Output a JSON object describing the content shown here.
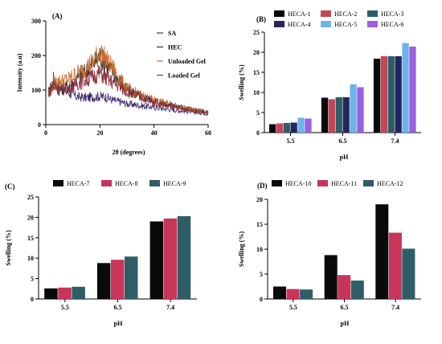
{
  "figure": {
    "background": "#ffffff"
  },
  "chart_data": [
    {
      "id": "A",
      "type": "line",
      "panel_label": "(A)",
      "xlabel": "2θ (degrees)",
      "ylabel": "Intensity (a.u)",
      "xlim": [
        0,
        60
      ],
      "ylim": [
        0,
        300
      ],
      "xticks": [
        0,
        20,
        40,
        60
      ],
      "yticks": [
        0,
        100,
        200,
        300
      ],
      "legend_position": "top-right",
      "series": [
        {
          "name": "SA",
          "color": "#3a2a6e",
          "x": [
            1,
            3,
            5,
            8,
            10,
            12,
            15,
            18,
            20,
            22,
            25,
            28,
            30,
            35,
            40,
            45,
            50,
            55,
            60
          ],
          "y": [
            90,
            135,
            110,
            95,
            85,
            80,
            78,
            80,
            82,
            80,
            70,
            65,
            60,
            55,
            50,
            45,
            40,
            36,
            32
          ]
        },
        {
          "name": "HEC",
          "color": "#2f2f2f",
          "x": [
            1,
            3,
            5,
            8,
            10,
            12,
            15,
            18,
            20,
            22,
            25,
            28,
            30,
            35,
            40,
            45,
            50,
            55,
            60
          ],
          "y": [
            95,
            115,
            100,
            110,
            120,
            135,
            155,
            180,
            200,
            175,
            150,
            120,
            100,
            80,
            70,
            60,
            50,
            42,
            35
          ]
        },
        {
          "name": "Unloaded Gel",
          "color": "#c96a2b",
          "x": [
            1,
            3,
            5,
            8,
            10,
            12,
            15,
            18,
            20,
            22,
            25,
            28,
            30,
            35,
            40,
            45,
            50,
            55,
            60
          ],
          "y": [
            85,
            120,
            125,
            130,
            140,
            150,
            165,
            185,
            210,
            190,
            160,
            125,
            105,
            85,
            70,
            60,
            50,
            42,
            35
          ]
        },
        {
          "name": "Loaded Gel",
          "color": "#8a2f3c",
          "x": [
            1,
            3,
            5,
            8,
            10,
            12,
            15,
            18,
            20,
            22,
            25,
            28,
            30,
            35,
            40,
            45,
            50,
            55,
            60
          ],
          "y": [
            90,
            120,
            100,
            105,
            110,
            120,
            130,
            140,
            150,
            135,
            120,
            105,
            95,
            80,
            65,
            55,
            47,
            40,
            34
          ]
        }
      ]
    },
    {
      "id": "B",
      "type": "bar",
      "panel_label": "(B)",
      "xlabel": "pH",
      "ylabel": "Swelling (%)",
      "categories": [
        "5.5",
        "6.5",
        "7.4"
      ],
      "ylim": [
        0,
        25
      ],
      "yticks": [
        0,
        5,
        10,
        15,
        20,
        25
      ],
      "legend_position": "top",
      "series": [
        {
          "name": "HECA-1",
          "color": "#0a0a0a",
          "values": [
            2.1,
            8.7,
            18.4
          ]
        },
        {
          "name": "HECA-2",
          "color": "#c2455a",
          "values": [
            2.3,
            8.3,
            19.0
          ]
        },
        {
          "name": "HECA-3",
          "color": "#2f5d66",
          "values": [
            2.4,
            8.8,
            19.0
          ]
        },
        {
          "name": "HECA-4",
          "color": "#23265c",
          "values": [
            2.5,
            8.8,
            19.0
          ]
        },
        {
          "name": "HECA-5",
          "color": "#6cb4ea",
          "values": [
            3.7,
            12.0,
            22.3
          ]
        },
        {
          "name": "HECA-6",
          "color": "#9c5fe0",
          "values": [
            3.5,
            11.3,
            21.4
          ]
        }
      ]
    },
    {
      "id": "C",
      "type": "bar",
      "panel_label": "(C)",
      "xlabel": "pH",
      "ylabel": "Swelling (%)",
      "categories": [
        "5.5",
        "6.5",
        "7.4"
      ],
      "ylim": [
        0,
        25
      ],
      "yticks": [
        0,
        5,
        10,
        15,
        20,
        25
      ],
      "legend_position": "top",
      "series": [
        {
          "name": "HECA-7",
          "color": "#0a0a0a",
          "values": [
            2.6,
            8.8,
            19.0
          ]
        },
        {
          "name": "HECA-8",
          "color": "#c8345a",
          "values": [
            2.8,
            9.6,
            19.7
          ]
        },
        {
          "name": "HECA-9",
          "color": "#2f5d66",
          "values": [
            3.0,
            10.4,
            20.3
          ]
        }
      ]
    },
    {
      "id": "D",
      "type": "bar",
      "panel_label": "(D)",
      "xlabel": "pH",
      "ylabel": "Swelling (%)",
      "categories": [
        "5.5",
        "6.5",
        "7.4"
      ],
      "ylim": [
        0,
        20
      ],
      "yticks": [
        0,
        5,
        10,
        15,
        20
      ],
      "legend_position": "top",
      "series": [
        {
          "name": "HECA-10",
          "color": "#0a0a0a",
          "values": [
            2.5,
            8.8,
            19.0
          ]
        },
        {
          "name": "HECA-11",
          "color": "#c8345a",
          "values": [
            2.0,
            4.8,
            13.3
          ]
        },
        {
          "name": "HECA-12",
          "color": "#2f5d66",
          "values": [
            1.9,
            3.7,
            10.1
          ]
        }
      ]
    }
  ]
}
